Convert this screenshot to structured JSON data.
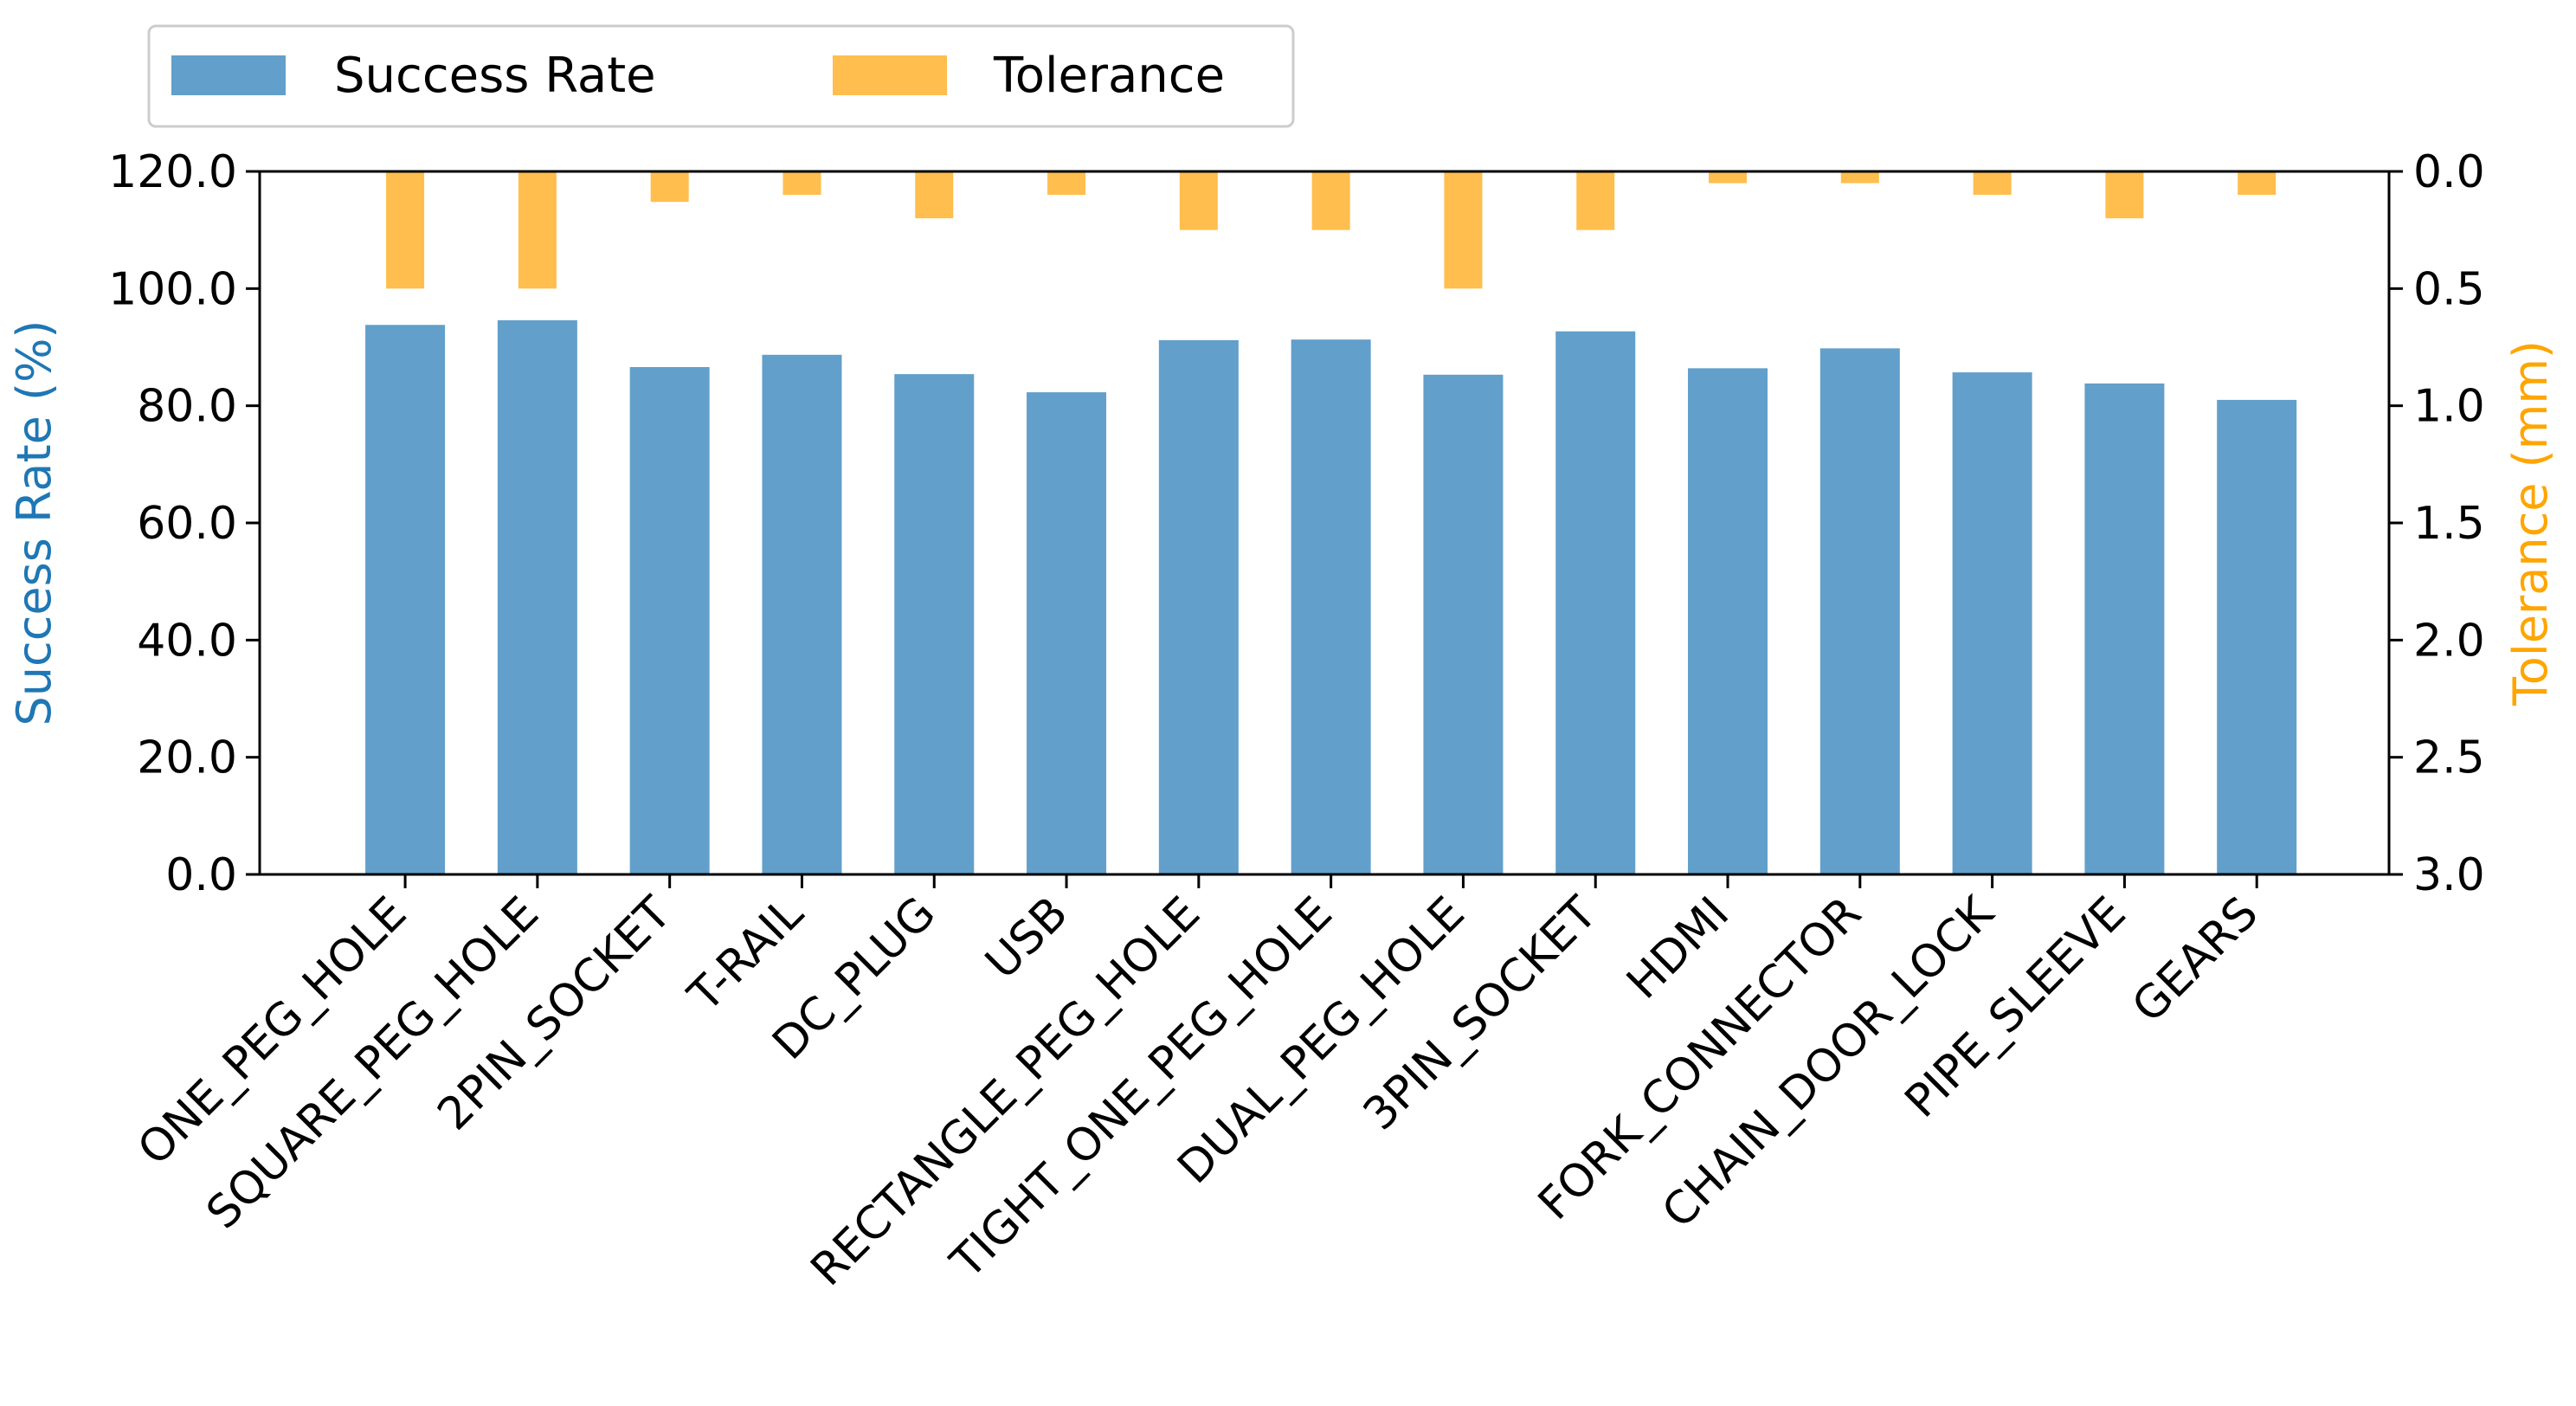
{
  "chart_data": {
    "type": "bar",
    "categories": [
      "ONE_PEG_HOLE",
      "SQUARE_PEG_HOLE",
      "2PIN_SOCKET",
      "T-RAIL",
      "DC_PLUG",
      "USB",
      "RECTANGLE_PEG_HOLE",
      "TIGHT_ONE_PEG_HOLE",
      "DUAL_PEG_HOLE",
      "3PIN_SOCKET",
      "HDMI",
      "FORK_CONNECTOR",
      "CHAIN_DOOR_LOCK",
      "PIPE_SLEEVE",
      "GEARS"
    ],
    "series": [
      {
        "name": "Success Rate",
        "axis": "left",
        "color": "#629fca",
        "values": [
          93.8,
          94.6,
          86.6,
          88.7,
          85.4,
          82.3,
          91.2,
          91.3,
          85.3,
          92.7,
          86.4,
          89.8,
          85.7,
          83.8,
          81.0
        ]
      },
      {
        "name": "Tolerance",
        "axis": "right",
        "color": "#ffbe4d",
        "values": [
          0.5,
          0.5,
          0.13,
          0.1,
          0.2,
          0.1,
          0.25,
          0.25,
          0.5,
          0.25,
          0.05,
          0.05,
          0.1,
          0.2,
          0.1
        ]
      }
    ],
    "ylabel": "Success Rate (%)",
    "ylabel_color": "#1f77b4",
    "ylim": [
      0,
      120
    ],
    "yticks": [
      "0.0",
      "20.0",
      "40.0",
      "60.0",
      "80.0",
      "100.0",
      "120.0"
    ],
    "y2label": "Tolerance (mm)",
    "y2label_color": "#ffa500",
    "y2lim": [
      3.0,
      0.0
    ],
    "y2_inverted": true,
    "y2ticks": [
      "0.0",
      "0.5",
      "1.0",
      "1.5",
      "2.0",
      "2.5",
      "3.0"
    ],
    "legend": {
      "placement": "top-left, above plot",
      "entries": [
        "Success Rate",
        "Tolerance"
      ]
    },
    "grid": false
  }
}
